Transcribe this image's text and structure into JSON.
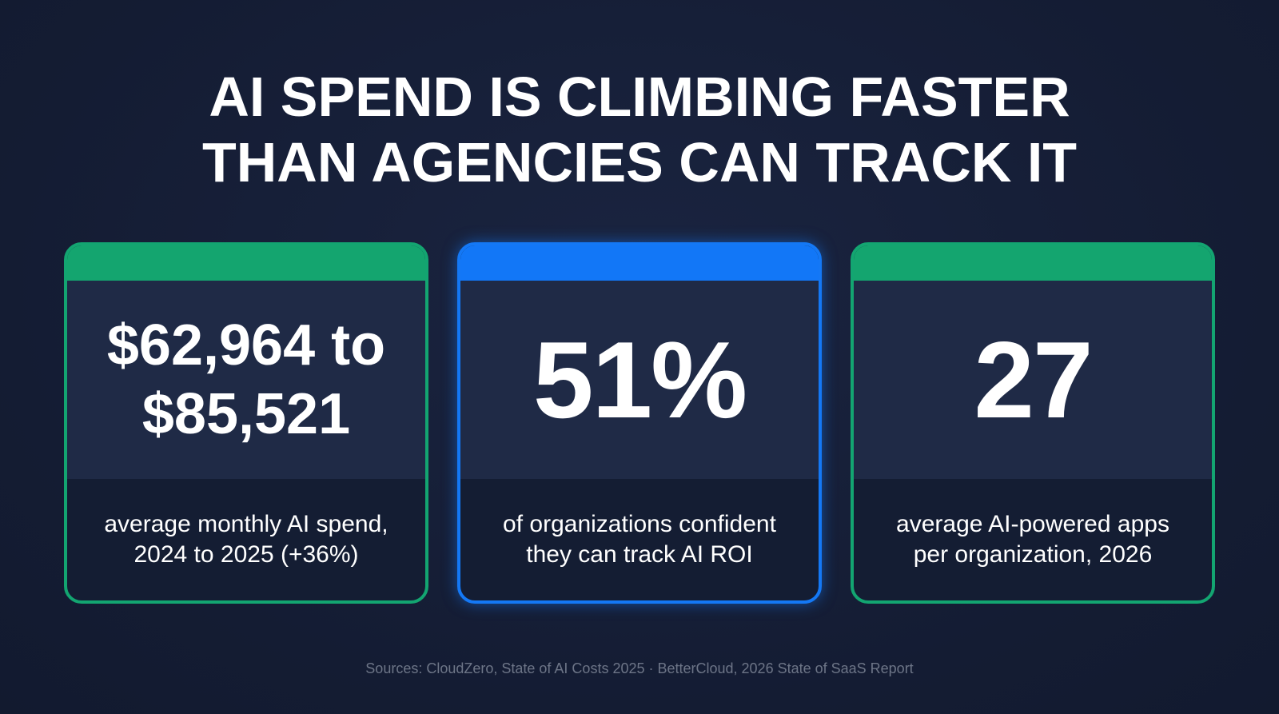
{
  "title": {
    "line1": "AI SPEND IS CLIMBING FASTER",
    "line2": "THAN AGENCIES CAN TRACK IT"
  },
  "cards": [
    {
      "accent": "#14a56f",
      "value_line1": "$62,964 to",
      "value_line2": "$85,521",
      "caption_line1": "average monthly AI spend,",
      "caption_line2": "2024 to 2025 (+36%)"
    },
    {
      "accent": "#1277f7",
      "value": "51%",
      "caption_line1": "of organizations confident",
      "caption_line2": "they can track AI ROI"
    },
    {
      "accent": "#14a56f",
      "value": "27",
      "caption_line1": "average AI-powered apps",
      "caption_line2": "per organization, 2026"
    }
  ],
  "sources": "Sources: CloudZero, State of AI Costs 2025 · BetterCloud, 2026 State of SaaS Report"
}
